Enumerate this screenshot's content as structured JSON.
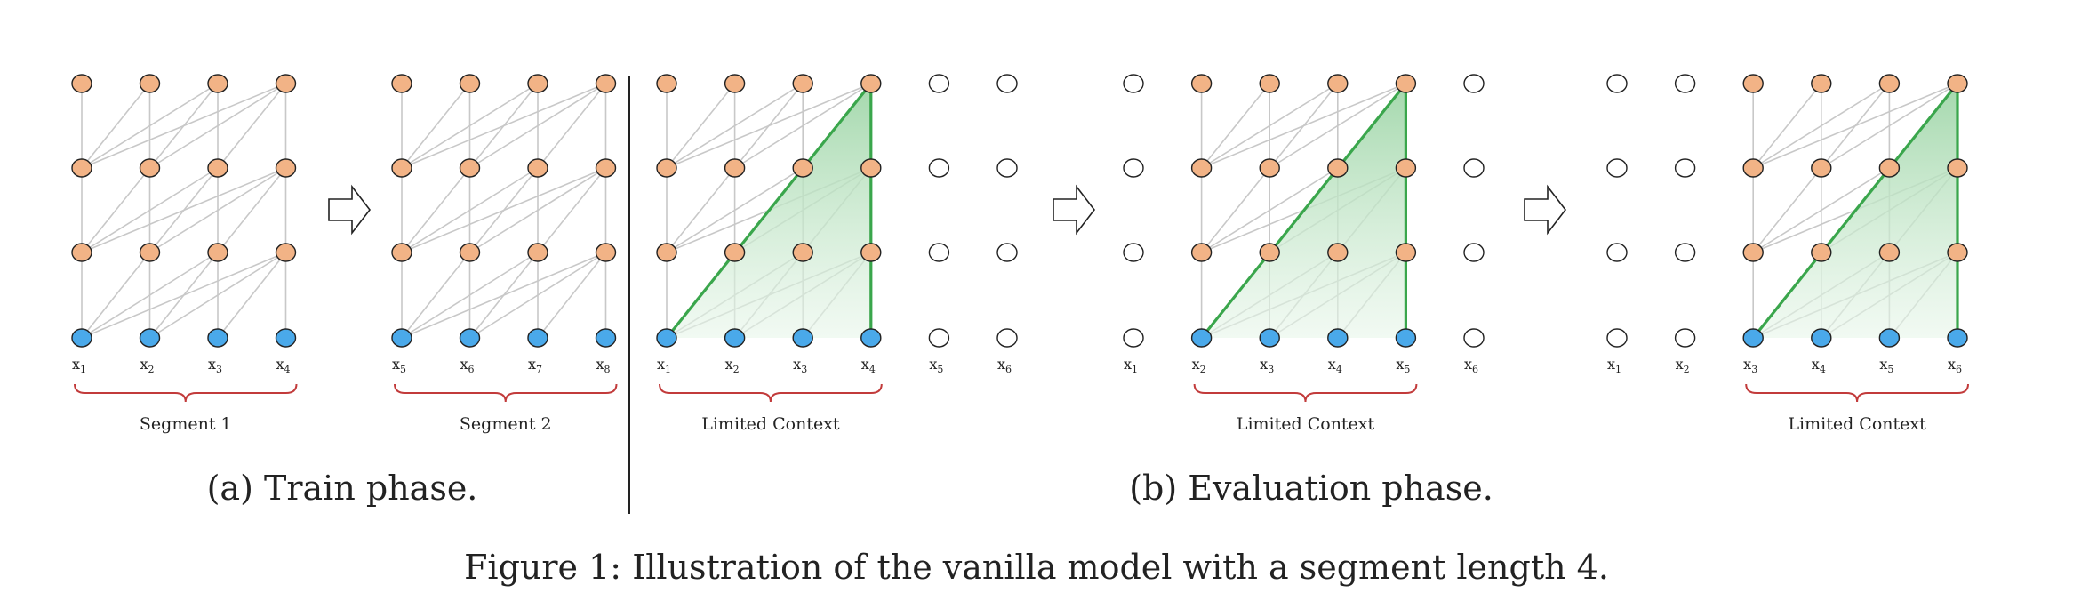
{
  "colors": {
    "hidden_node": "#f2b386",
    "input_node": "#4aa9ea",
    "empty_node": "#ffffff",
    "node_stroke": "#222222",
    "edge": "#c8c8c8",
    "context_green": "#3aa64c",
    "context_fill": "#a6d9ae",
    "brace": "#c23b3b",
    "divider": "#222222"
  },
  "panels": {
    "train": {
      "caption": "(a) Train phase.",
      "segments": [
        {
          "brace_label": "Segment 1",
          "tokens": [
            {
              "b": "x",
              "s": "1"
            },
            {
              "b": "x",
              "s": "2"
            },
            {
              "b": "x",
              "s": "3"
            },
            {
              "b": "x",
              "s": "4"
            }
          ]
        },
        {
          "brace_label": "Segment 2",
          "tokens": [
            {
              "b": "x",
              "s": "5"
            },
            {
              "b": "x",
              "s": "6"
            },
            {
              "b": "x",
              "s": "7"
            },
            {
              "b": "x",
              "s": "8"
            }
          ]
        }
      ]
    },
    "evaluation": {
      "caption": "(b) Evaluation phase.",
      "steps": [
        {
          "brace_label": "Limited Context",
          "context_start": 0,
          "tokens": [
            {
              "b": "x",
              "s": "1"
            },
            {
              "b": "x",
              "s": "2"
            },
            {
              "b": "x",
              "s": "3"
            },
            {
              "b": "x",
              "s": "4"
            },
            {
              "b": "x",
              "s": "5"
            },
            {
              "b": "x",
              "s": "6"
            }
          ]
        },
        {
          "brace_label": "Limited Context",
          "context_start": 1,
          "tokens": [
            {
              "b": "x",
              "s": "1"
            },
            {
              "b": "x",
              "s": "2"
            },
            {
              "b": "x",
              "s": "3"
            },
            {
              "b": "x",
              "s": "4"
            },
            {
              "b": "x",
              "s": "5"
            },
            {
              "b": "x",
              "s": "6"
            }
          ]
        },
        {
          "brace_label": "Limited Context",
          "context_start": 2,
          "tokens": [
            {
              "b": "x",
              "s": "1"
            },
            {
              "b": "x",
              "s": "2"
            },
            {
              "b": "x",
              "s": "3"
            },
            {
              "b": "x",
              "s": "4"
            },
            {
              "b": "x",
              "s": "5"
            },
            {
              "b": "x",
              "s": "6"
            }
          ]
        }
      ]
    }
  },
  "segment_length": 4,
  "layers": 4,
  "figure_caption": {
    "prefix": "Figure 1:",
    "text": "Illustration of the vanilla model with a segment length 4."
  }
}
